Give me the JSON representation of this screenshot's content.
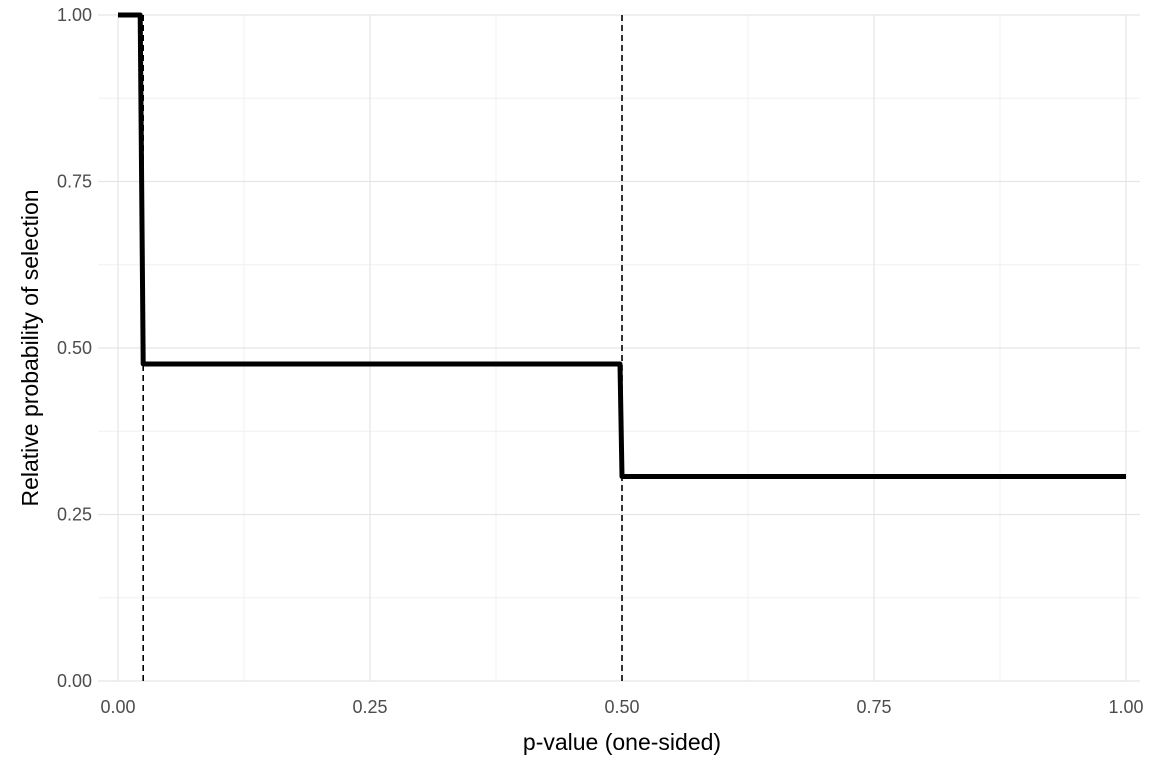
{
  "chart_data": {
    "type": "line",
    "title": "",
    "xlabel": "p-value (one-sided)",
    "ylabel": "Relative probability of selection",
    "xlim": [
      0,
      1
    ],
    "ylim": [
      0,
      1
    ],
    "x_ticks": [
      0,
      0.25,
      0.5,
      0.75,
      1
    ],
    "x_tick_labels": [
      "0.00",
      "0.25",
      "0.50",
      "0.75",
      "1.00"
    ],
    "y_ticks": [
      0,
      0.25,
      0.5,
      0.75,
      1
    ],
    "y_tick_labels": [
      "0.00",
      "0.25",
      "0.50",
      "0.75",
      "1.00"
    ],
    "grid": true,
    "series": [
      {
        "x": [
          0,
          0.022,
          0.025,
          0.498,
          0.5,
          1
        ],
        "y": [
          1,
          1,
          0.476,
          0.476,
          0.307,
          0.307
        ]
      }
    ],
    "reference_lines": [
      {
        "orientation": "vertical",
        "x": 0.025,
        "style": "dashed"
      },
      {
        "orientation": "vertical",
        "x": 0.5,
        "style": "dashed"
      }
    ],
    "colors": {
      "line": "#000000",
      "grid_major": "#e5e5e5",
      "grid_minor": "#f0f0f0",
      "tick_text": "#4d4d4d",
      "background": "#ffffff"
    }
  }
}
